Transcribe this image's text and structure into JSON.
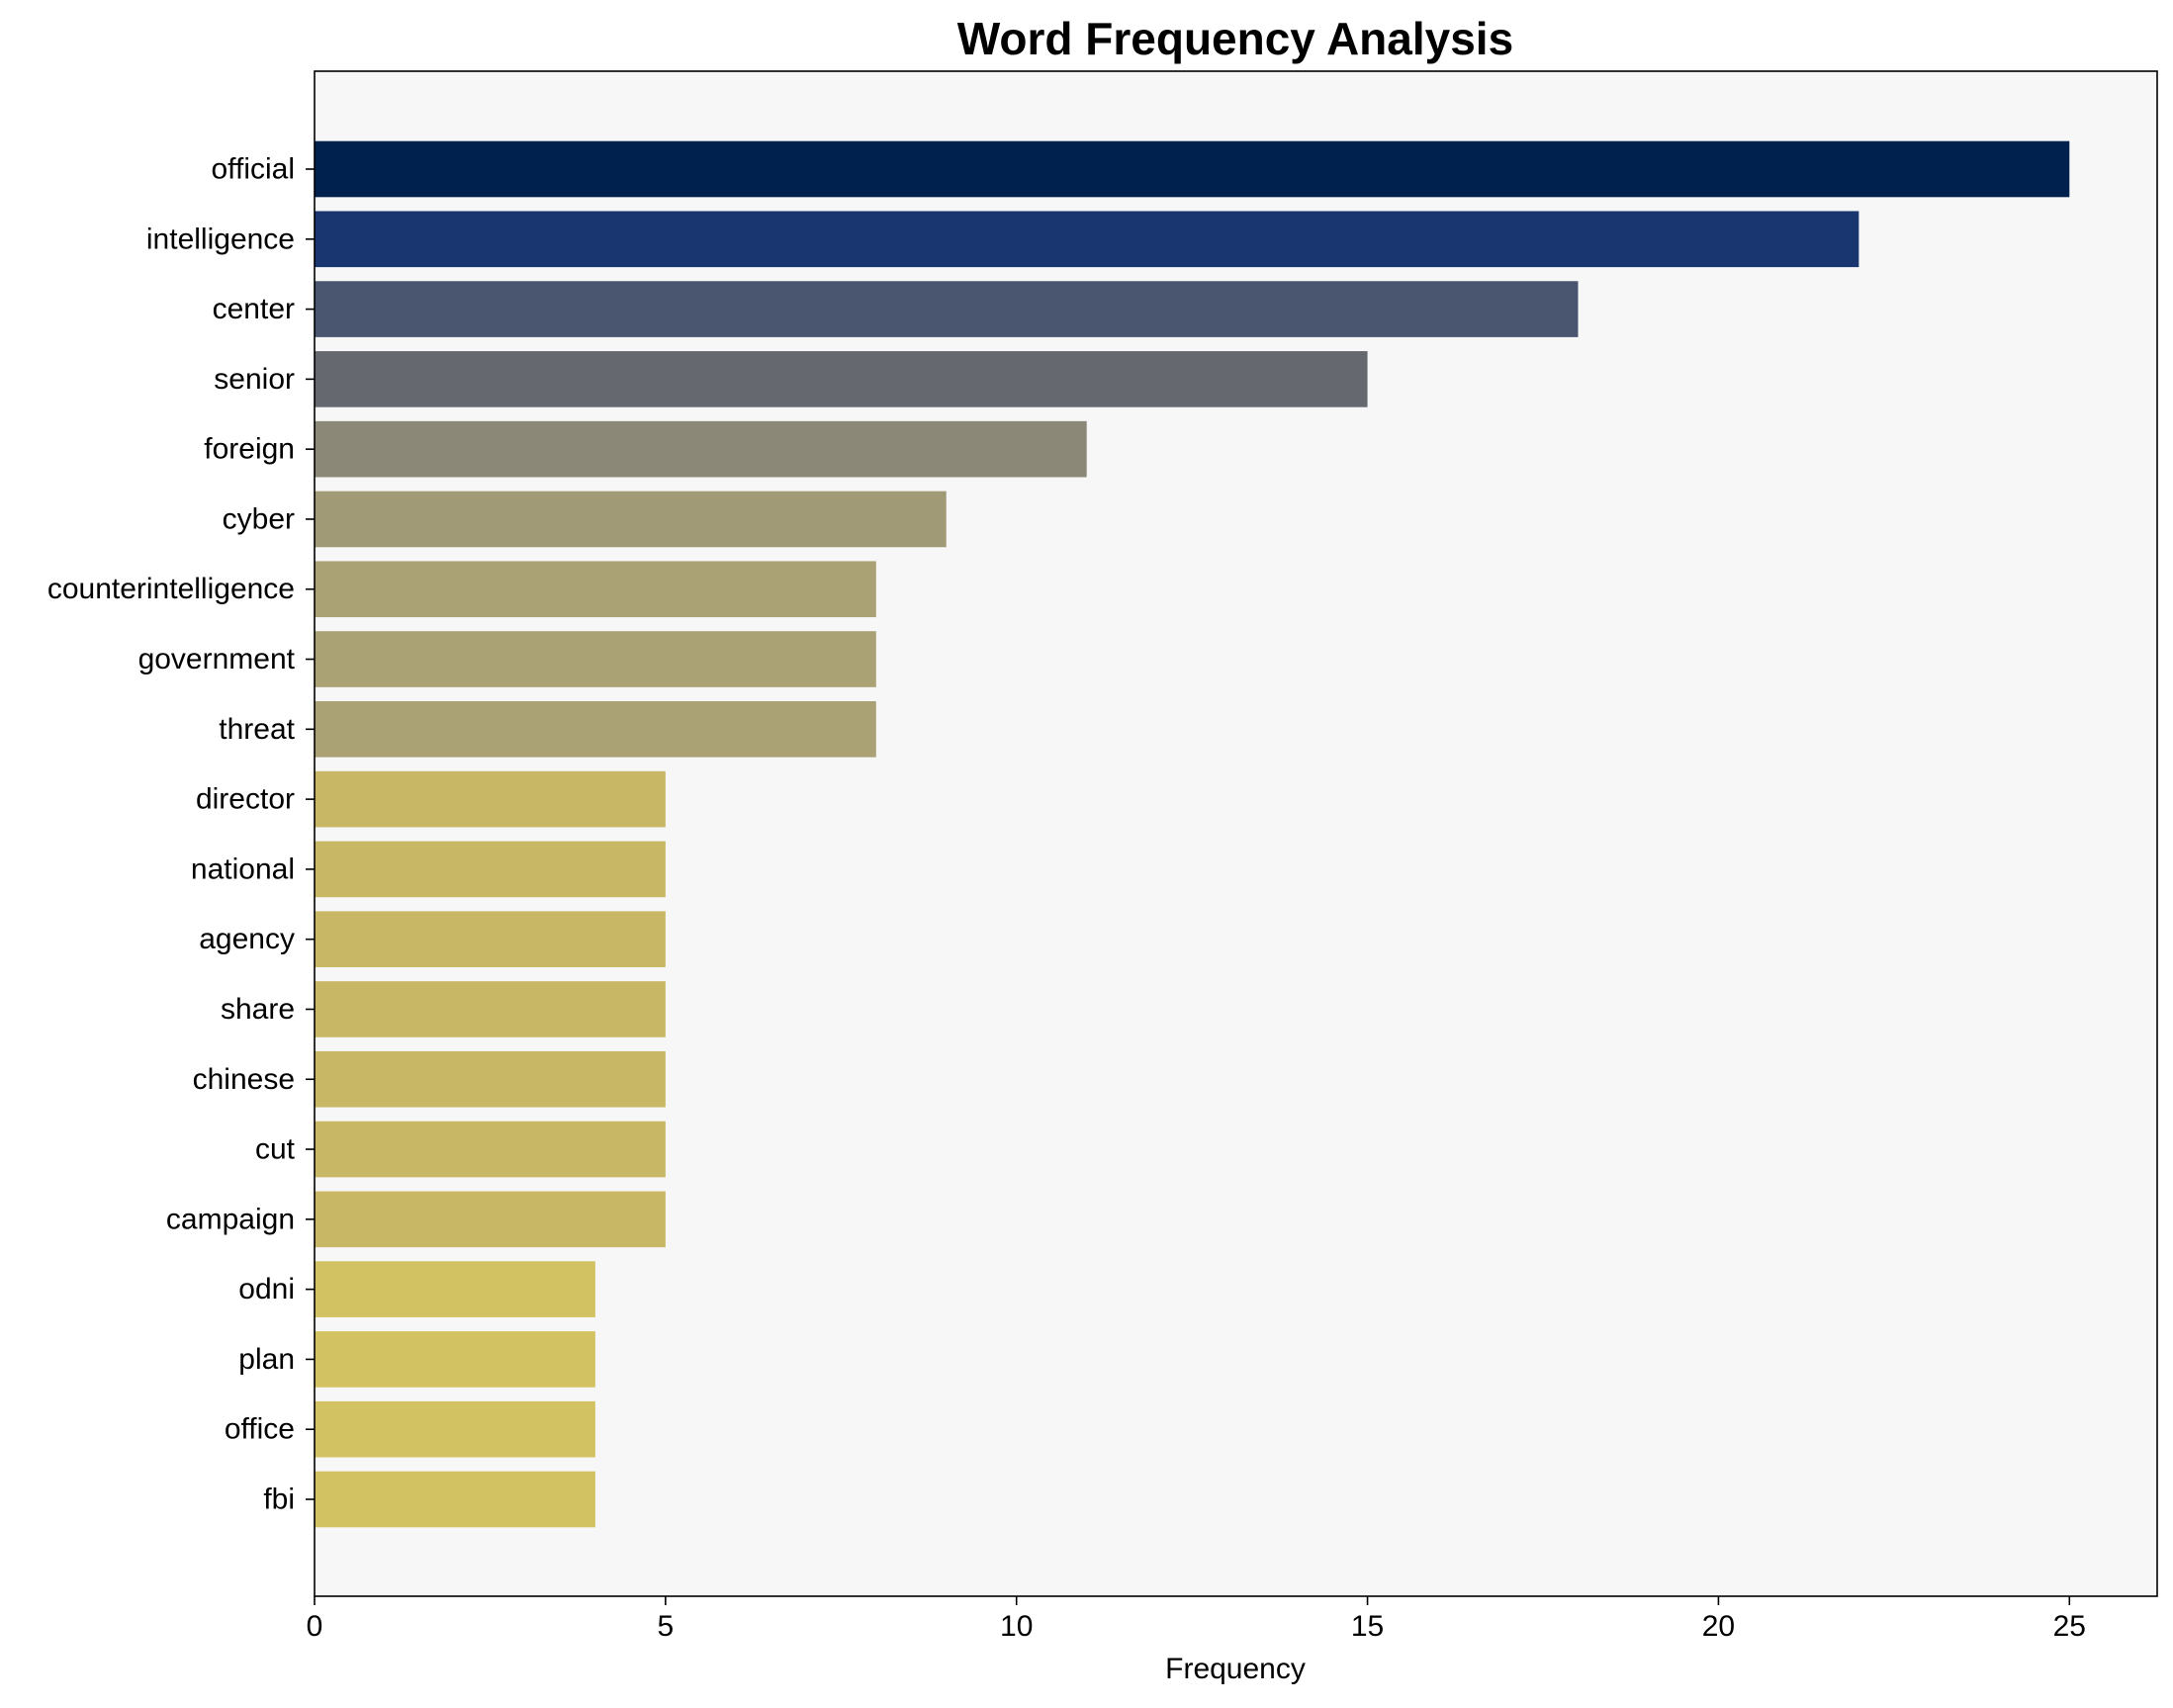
{
  "chart_data": {
    "type": "bar",
    "orientation": "horizontal",
    "title": "Word Frequency Analysis",
    "xlabel": "Frequency",
    "ylabel": "",
    "xlim": [
      0,
      26.25
    ],
    "xticks": [
      0,
      5,
      10,
      15,
      20,
      25
    ],
    "grid": false,
    "legend": "none",
    "plot_background": "#f7f7f7",
    "categories": [
      "official",
      "intelligence",
      "center",
      "senior",
      "foreign",
      "cyber",
      "counterintelligence",
      "government",
      "threat",
      "director",
      "national",
      "agency",
      "share",
      "chinese",
      "cut",
      "campaign",
      "odni",
      "plan",
      "office",
      "fbi"
    ],
    "values": [
      25,
      22,
      18,
      15,
      11,
      9,
      8,
      8,
      8,
      5,
      5,
      5,
      5,
      5,
      5,
      5,
      4,
      4,
      4,
      4
    ],
    "colors": [
      "#00204d",
      "#193670",
      "#4a556f",
      "#666870",
      "#8b8878",
      "#a19a77",
      "#aaa174",
      "#aaa174",
      "#aaa174",
      "#c8b866",
      "#c8b866",
      "#c8b866",
      "#c8b866",
      "#c8b866",
      "#c8b866",
      "#c8b866",
      "#d3c262",
      "#d3c262",
      "#d3c262",
      "#d3c262"
    ]
  }
}
